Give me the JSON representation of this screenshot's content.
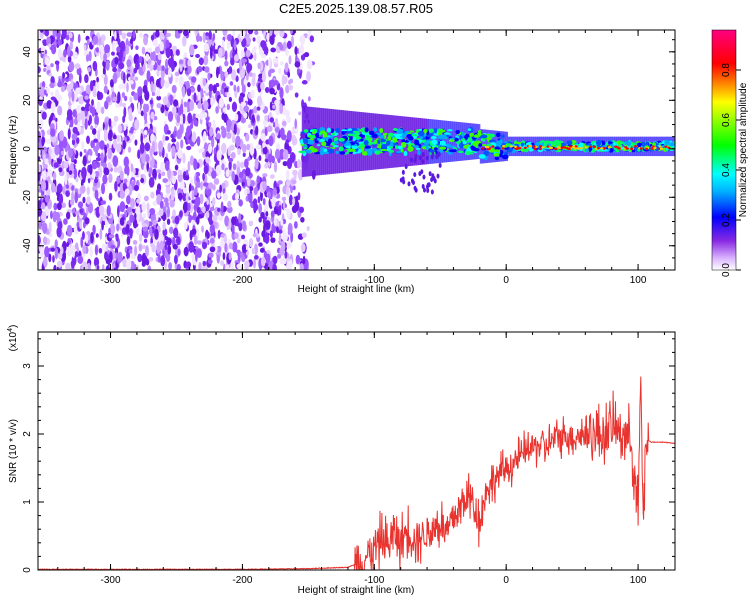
{
  "title": "C2E5.2025.139.08.57.R05",
  "chart_data": [
    {
      "type": "heatmap",
      "xlabel": "Height of straight line (km)",
      "ylabel": "Frequency (Hz)",
      "xlim": [
        -355,
        128
      ],
      "ylim": [
        -50,
        49
      ],
      "x_ticks": [
        -300,
        -200,
        -100,
        0,
        100
      ],
      "y_ticks": [
        -40,
        -20,
        0,
        20,
        40
      ],
      "colorbar": {
        "label": "Normalized spectral amplitude",
        "range": [
          0,
          0.96
        ],
        "ticks": [
          "0.0",
          "0.2",
          "0.4",
          "0.6",
          "0.8"
        ],
        "tick_values": [
          0,
          0.2,
          0.4,
          0.6,
          0.8
        ],
        "colors": [
          "#ffffff",
          "#d9b3ff",
          "#8a2be2",
          "#0000ff",
          "#00ffff",
          "#00ff00",
          "#ffff00",
          "#ff0000",
          "#ff0080"
        ]
      },
      "regions": [
        {
          "x": [
            -355,
            -150
          ],
          "freq": [
            -50,
            49
          ],
          "amplitude": "0.0-0.2",
          "pattern": "noise"
        },
        {
          "x": [
            -155,
            128
          ],
          "freq": [
            -6,
            12
          ],
          "amplitude": "0.2-0.9",
          "pattern": "signal band near 0 Hz"
        }
      ]
    },
    {
      "type": "line",
      "xlabel": "Height of straight line (km)",
      "ylabel": "SNR (10 * v/v)",
      "y_multiplier": "(x10",
      "y_multiplier_exp": "4",
      "xlim": [
        -355,
        128
      ],
      "ylim": [
        0,
        3.5
      ],
      "x_ticks": [
        -300,
        -200,
        -100,
        0,
        100
      ],
      "y_ticks": [
        0,
        1,
        2,
        3
      ],
      "color": "#e8332e",
      "series": [
        {
          "x": [
            -355,
            -300,
            -250,
            -200,
            -150,
            -120,
            -110,
            -100,
            -95,
            -90,
            -85,
            -80,
            -75,
            -70,
            -65,
            -60,
            -55,
            -50,
            -45,
            -40,
            -35,
            -30,
            -25,
            -20,
            -15,
            -10,
            -5,
            0,
            5,
            10,
            15,
            20,
            25,
            30,
            35,
            40,
            45,
            50,
            55,
            60,
            65,
            70,
            75,
            80,
            85,
            90,
            95,
            100,
            102,
            104,
            106,
            108,
            110,
            120,
            128
          ],
          "y": [
            0.01,
            0.01,
            0.01,
            0.01,
            0.02,
            0.04,
            0.12,
            0.3,
            0.45,
            0.35,
            0.55,
            0.4,
            0.6,
            0.45,
            0.5,
            0.55,
            0.6,
            0.7,
            0.55,
            0.75,
            0.9,
            1.1,
            1.0,
            0.7,
            1.2,
            1.3,
            1.4,
            1.5,
            1.55,
            1.65,
            1.75,
            1.8,
            1.85,
            1.8,
            1.9,
            1.95,
            2.0,
            1.95,
            1.98,
            2.0,
            2.05,
            1.95,
            2.0,
            2.1,
            2.05,
            2.0,
            1.9,
            0.8,
            2.8,
            0.6,
            2.1,
            1.9,
            1.88,
            1.88,
            1.86
          ]
        }
      ]
    }
  ]
}
